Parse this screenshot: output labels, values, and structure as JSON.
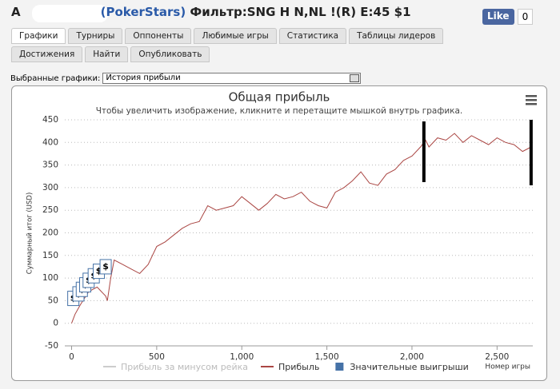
{
  "header": {
    "letter": "A",
    "site": "(PokerStars)",
    "filter": "Фильтр:SNG H N,NL !(R) E:45 $1",
    "like": "Like",
    "like_count": "0"
  },
  "tabs": [
    "Графики",
    "Турниры",
    "Оппоненты",
    "Любимые игры",
    "Статистика",
    "Таблицы лидеров",
    "Достижения",
    "Найти",
    "Опубликовать"
  ],
  "selector": {
    "label": "Выбранные графики:",
    "value": "История прибыли"
  },
  "chart_data": {
    "type": "line",
    "title": "Общая прибыль",
    "subtitle": "Чтобы увеличить изображение, кликните и перетащите мышкой внутрь графика.",
    "y_label": "Суммарный итог (USD)",
    "x_label": "Номер игры",
    "xlim": [
      -40,
      2710
    ],
    "ylim": [
      -50,
      450
    ],
    "xticks": [
      0,
      500,
      {
        "value": 1000,
        "label": "1,000"
      },
      {
        "value": 1500,
        "label": "1,500"
      },
      {
        "value": 2000,
        "label": "2,000"
      },
      {
        "value": 2500,
        "label": "2,500"
      }
    ],
    "yticks": [
      -50,
      0,
      50,
      100,
      150,
      200,
      250,
      300,
      350,
      400,
      450
    ],
    "grid": true,
    "series": [
      {
        "name": "Прибыль за минусом рейка",
        "color": "#cccccc",
        "x": [],
        "values": []
      },
      {
        "name": "Прибыль",
        "color": "#aa4643",
        "x": [
          0,
          20,
          50,
          100,
          150,
          200,
          210,
          230,
          250,
          300,
          350,
          400,
          450,
          500,
          550,
          600,
          650,
          700,
          750,
          800,
          850,
          900,
          950,
          1000,
          1050,
          1100,
          1150,
          1200,
          1250,
          1300,
          1350,
          1400,
          1450,
          1500,
          1550,
          1600,
          1650,
          1700,
          1750,
          1800,
          1850,
          1900,
          1950,
          2000,
          2050,
          2080,
          2100,
          2150,
          2200,
          2250,
          2300,
          2350,
          2400,
          2450,
          2500,
          2550,
          2600,
          2650,
          2700
        ],
        "values": [
          0,
          20,
          40,
          70,
          80,
          60,
          50,
          100,
          140,
          130,
          120,
          110,
          130,
          170,
          180,
          195,
          210,
          220,
          225,
          260,
          250,
          255,
          260,
          280,
          265,
          250,
          265,
          285,
          275,
          280,
          290,
          270,
          260,
          255,
          290,
          300,
          315,
          335,
          310,
          305,
          330,
          340,
          360,
          370,
          390,
          405,
          390,
          410,
          405,
          420,
          400,
          415,
          405,
          395,
          410,
          400,
          395,
          380,
          390
        ]
      },
      {
        "name": "Значительные выигрыши",
        "color": "#4572a7",
        "marker_label": "$",
        "x": [
          10,
          40,
          60,
          80,
          100,
          130,
          160,
          200
        ],
        "values": [
          55,
          65,
          75,
          85,
          95,
          105,
          115,
          125
        ]
      }
    ]
  }
}
